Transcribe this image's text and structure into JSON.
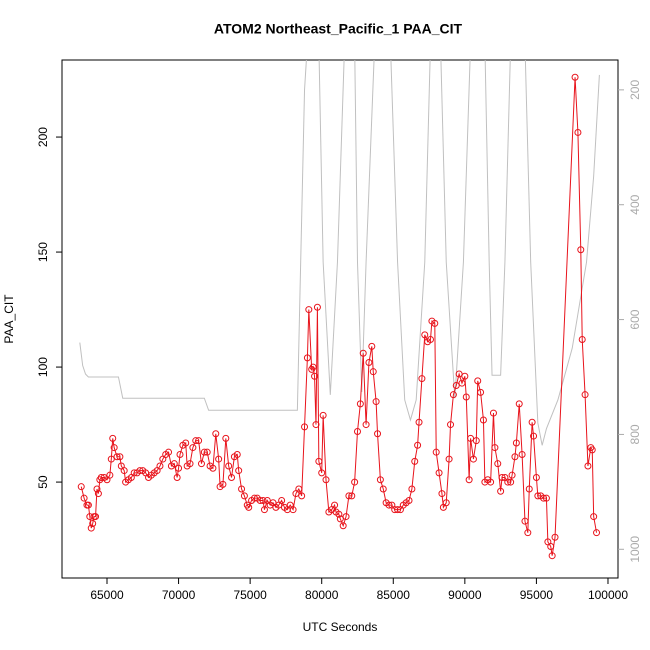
{
  "chart_data": {
    "type": "line",
    "title": "ATOM2 Northeast_Pacific_1 PAA_CIT",
    "x_label": "UTC Seconds",
    "y_label": "PAA_CIT",
    "xlim": [
      61856,
      100700
    ],
    "ylim": [
      8.3,
      233.5
    ],
    "y2lim": [
      1050,
      148
    ],
    "xticks": [
      65000,
      70000,
      75000,
      80000,
      85000,
      90000,
      95000,
      100000
    ],
    "yticks": [
      50,
      100,
      150,
      200
    ],
    "y2ticks": [
      200,
      400,
      600,
      800,
      1000
    ],
    "series": [
      {
        "color": "#e8141c",
        "markers": true,
        "x": [
          63200,
          63400,
          63600,
          63700,
          63800,
          63900,
          64000,
          64100,
          64200,
          64300,
          64400,
          64500,
          64600,
          64800,
          65000,
          65200,
          65300,
          65400,
          65500,
          65700,
          65900,
          66000,
          66200,
          66300,
          66500,
          66700,
          66900,
          67100,
          67300,
          67500,
          67700,
          67900,
          68100,
          68300,
          68500,
          68700,
          68900,
          69100,
          69300,
          69500,
          69700,
          69900,
          70000,
          70100,
          70300,
          70500,
          70600,
          70800,
          71000,
          71200,
          71400,
          71600,
          71800,
          72000,
          72200,
          72400,
          72600,
          72800,
          72900,
          73100,
          73300,
          73500,
          73700,
          73900,
          74100,
          74200,
          74400,
          74600,
          74800,
          74900,
          75100,
          75300,
          75500,
          75700,
          75900,
          76000,
          76200,
          76400,
          76600,
          76800,
          77000,
          77200,
          77400,
          77600,
          77800,
          78000,
          78200,
          78400,
          78600,
          78800,
          79000,
          79100,
          79300,
          79400,
          79500,
          79600,
          79700,
          79800,
          80000,
          80100,
          80300,
          80500,
          80700,
          80900,
          81000,
          81200,
          81300,
          81500,
          81700,
          81900,
          82100,
          82300,
          82500,
          82700,
          82900,
          83100,
          83300,
          83500,
          83600,
          83800,
          83900,
          84100,
          84300,
          84500,
          84700,
          84900,
          85100,
          85300,
          85500,
          85700,
          85900,
          86100,
          86300,
          86500,
          86700,
          86800,
          87000,
          87200,
          87400,
          87600,
          87700,
          87900,
          88000,
          88200,
          88400,
          88500,
          88700,
          88900,
          89000,
          89200,
          89400,
          89600,
          89800,
          90000,
          90100,
          90300,
          90400,
          90600,
          90800,
          90900,
          91100,
          91300,
          91400,
          91600,
          91800,
          92000,
          92100,
          92300,
          92500,
          92600,
          92800,
          93000,
          93200,
          93300,
          93500,
          93600,
          93800,
          94000,
          94200,
          94400,
          94500,
          94700,
          94800,
          95000,
          95100,
          95300,
          95500,
          95700,
          95800,
          96000,
          96100,
          96300,
          97700,
          97900,
          98100,
          98200,
          98400,
          98600,
          98800,
          98900,
          99000,
          99200
        ],
        "values": [
          48,
          43,
          40,
          40,
          35,
          30,
          32,
          35,
          35,
          47,
          45,
          51,
          52,
          52,
          51,
          53,
          60,
          69,
          65,
          61,
          61,
          57,
          55,
          50,
          51,
          52,
          54,
          54,
          55,
          55,
          54,
          52,
          53,
          54,
          55,
          57,
          60,
          62,
          63,
          57,
          58,
          52,
          56,
          62,
          66,
          67,
          57,
          58,
          65,
          68,
          68,
          58,
          63,
          63,
          57,
          56,
          71,
          60,
          48,
          49,
          69,
          57,
          52,
          61,
          62,
          55,
          47,
          44,
          40,
          39,
          42,
          43,
          43,
          42,
          42,
          38,
          42,
          40,
          41,
          39,
          40,
          42,
          39,
          38,
          40,
          38,
          45,
          47,
          44,
          74,
          104,
          125,
          99,
          100,
          96,
          75,
          126,
          59,
          54,
          79,
          51,
          37,
          38,
          40,
          37,
          36,
          34,
          31,
          35,
          44,
          44,
          50,
          72,
          84,
          106,
          75,
          102,
          109,
          98,
          85,
          71,
          51,
          47,
          41,
          40,
          40,
          38,
          38,
          38,
          40,
          41,
          42,
          47,
          59,
          66,
          76,
          95,
          114,
          111,
          112,
          120,
          119,
          63,
          54,
          45,
          39,
          41,
          60,
          75,
          88,
          92,
          97,
          93,
          96,
          87,
          51,
          69,
          60,
          68,
          94,
          89,
          77,
          50,
          51,
          50,
          80,
          65,
          58,
          46,
          52,
          52,
          50,
          50,
          53,
          61,
          67,
          84,
          62,
          33,
          28,
          47,
          76,
          70,
          52,
          44,
          44,
          43,
          43,
          24,
          22,
          18,
          26,
          226,
          202,
          151,
          112,
          88,
          57,
          65,
          64,
          35,
          28
        ]
      },
      {
        "color": "#c0c0c0",
        "axis": "y2",
        "markers": false,
        "x": [
          63100,
          63300,
          63500,
          63700,
          65800,
          66100,
          71800,
          72100,
          78300,
          78800,
          79000,
          79800,
          80100,
          80600,
          81100,
          81600,
          82300,
          82500,
          82800,
          83100,
          83700,
          84800,
          85300,
          85800,
          86200,
          86600,
          87200,
          87600,
          88300,
          88700,
          89300,
          89900,
          90400,
          91400,
          91700,
          91900,
          92500,
          92800,
          93200,
          94200,
          94600,
          95100,
          95400,
          95700,
          96500,
          97500,
          98500,
          99000,
          99400
        ],
        "values": [
          640,
          680,
          695,
          700,
          700,
          737,
          737,
          758,
          758,
          200,
          120,
          120,
          500,
          731,
          500,
          120,
          120,
          500,
          726,
          500,
          120,
          120,
          500,
          740,
          775,
          740,
          500,
          120,
          120,
          500,
          737,
          500,
          120,
          120,
          500,
          697,
          697,
          500,
          120,
          120,
          500,
          780,
          819,
          790,
          740,
          650,
          500,
          350,
          174
        ]
      }
    ]
  }
}
